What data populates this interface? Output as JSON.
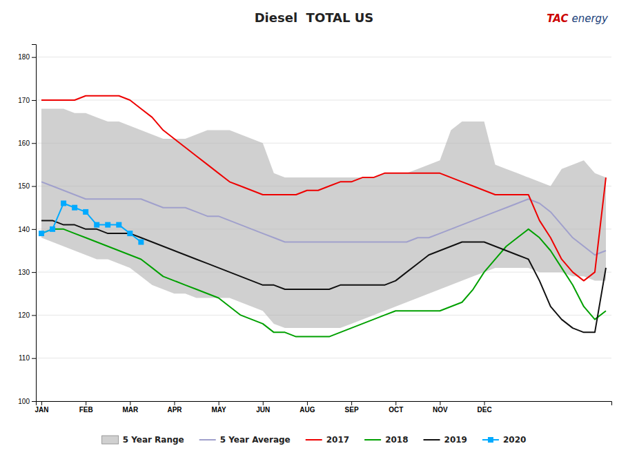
{
  "chart_data": {
    "type": "line",
    "title": "Diesel  TOTAL US",
    "categories": [
      "JAN",
      null,
      null,
      null,
      "FEB",
      null,
      null,
      null,
      "MAR",
      null,
      null,
      null,
      "APR",
      null,
      null,
      null,
      "MAY",
      null,
      null,
      null,
      "JUN",
      null,
      null,
      null,
      "AUG",
      null,
      null,
      null,
      "SEP",
      null,
      null,
      null,
      "OCT",
      null,
      null,
      null,
      "NOV",
      null,
      null,
      null,
      "DEC",
      null,
      null,
      null,
      null,
      null,
      null,
      null,
      null,
      null,
      null,
      null
    ],
    "series": [
      {
        "name": "5 Year Range",
        "type": "area",
        "color": "#b0b0b0",
        "upper": [
          168,
          168,
          168,
          167,
          167,
          166,
          165,
          165,
          164,
          163,
          162,
          161,
          161,
          161,
          162,
          163,
          163,
          163,
          162,
          161,
          160,
          153,
          152,
          152,
          152,
          152,
          152,
          152,
          152,
          152,
          152,
          153,
          153,
          153,
          154,
          155,
          156,
          163,
          165,
          165,
          165,
          155,
          154,
          153,
          152,
          151,
          150,
          154,
          155,
          156,
          153,
          152
        ],
        "lower": [
          138,
          137,
          136,
          135,
          134,
          133,
          133,
          132,
          131,
          129,
          127,
          126,
          125,
          125,
          124,
          124,
          124,
          124,
          123,
          122,
          121,
          118,
          117,
          117,
          117,
          117,
          117,
          117,
          118,
          119,
          120,
          121,
          122,
          123,
          124,
          125,
          126,
          127,
          128,
          129,
          130,
          131,
          131,
          131,
          131,
          130,
          130,
          130,
          129,
          129,
          128,
          128
        ]
      },
      {
        "name": "5 Year Average",
        "color": "#a0a0cc",
        "values": [
          151,
          150,
          149,
          148,
          147,
          147,
          147,
          147,
          147,
          147,
          146,
          145,
          145,
          145,
          144,
          143,
          143,
          142,
          141,
          140,
          139,
          138,
          137,
          137,
          137,
          137,
          137,
          137,
          137,
          137,
          137,
          137,
          137,
          137,
          138,
          138,
          139,
          140,
          141,
          142,
          143,
          144,
          145,
          146,
          147,
          146,
          144,
          141,
          138,
          136,
          134,
          135
        ]
      },
      {
        "name": "2017",
        "color": "#ee0000",
        "values": [
          170,
          170,
          170,
          170,
          171,
          171,
          171,
          171,
          170,
          168,
          166,
          163,
          161,
          159,
          157,
          155,
          153,
          151,
          150,
          149,
          148,
          148,
          148,
          148,
          149,
          149,
          150,
          151,
          151,
          152,
          152,
          153,
          153,
          153,
          153,
          153,
          153,
          152,
          151,
          150,
          149,
          148,
          148,
          148,
          148,
          142,
          138,
          133,
          130,
          128,
          130,
          152
        ]
      },
      {
        "name": "2018",
        "color": "#00a000",
        "values": [
          139,
          140,
          140,
          139,
          138,
          137,
          136,
          135,
          134,
          133,
          131,
          129,
          128,
          127,
          126,
          125,
          124,
          122,
          120,
          119,
          118,
          116,
          116,
          115,
          115,
          115,
          115,
          116,
          117,
          118,
          119,
          120,
          121,
          121,
          121,
          121,
          121,
          122,
          123,
          126,
          130,
          133,
          136,
          138,
          140,
          138,
          135,
          131,
          127,
          122,
          119,
          121
        ]
      },
      {
        "name": "2019",
        "color": "#111111",
        "values": [
          142,
          142,
          141,
          141,
          140,
          140,
          139,
          139,
          139,
          138,
          137,
          136,
          135,
          134,
          133,
          132,
          131,
          130,
          129,
          128,
          127,
          127,
          126,
          126,
          126,
          126,
          126,
          127,
          127,
          127,
          127,
          127,
          128,
          130,
          132,
          134,
          135,
          136,
          137,
          137,
          137,
          136,
          135,
          134,
          133,
          128,
          122,
          119,
          117,
          116,
          116,
          131
        ]
      },
      {
        "name": "2020",
        "color": "#00aaff",
        "marker": "square",
        "values": [
          139,
          140,
          146,
          145,
          144,
          141,
          141,
          141,
          139,
          137,
          null,
          null,
          null,
          null,
          null,
          null,
          null,
          null,
          null,
          null,
          null,
          null,
          null,
          null,
          null,
          null,
          null,
          null,
          null,
          null,
          null,
          null,
          null,
          null,
          null,
          null,
          null,
          null,
          null,
          null,
          null,
          null,
          null,
          null,
          null,
          null,
          null,
          null,
          null,
          null,
          null,
          null
        ]
      }
    ],
    "ylim": [
      100,
      183
    ],
    "yticks": [
      100,
      110,
      120,
      130,
      140,
      150,
      160,
      170,
      180
    ],
    "grid": true,
    "legend": "bottom",
    "annotations": [
      {
        "text": "TAC",
        "color": "#cc0000"
      },
      {
        "text": "energy",
        "color": "#1a3f7a"
      }
    ]
  }
}
